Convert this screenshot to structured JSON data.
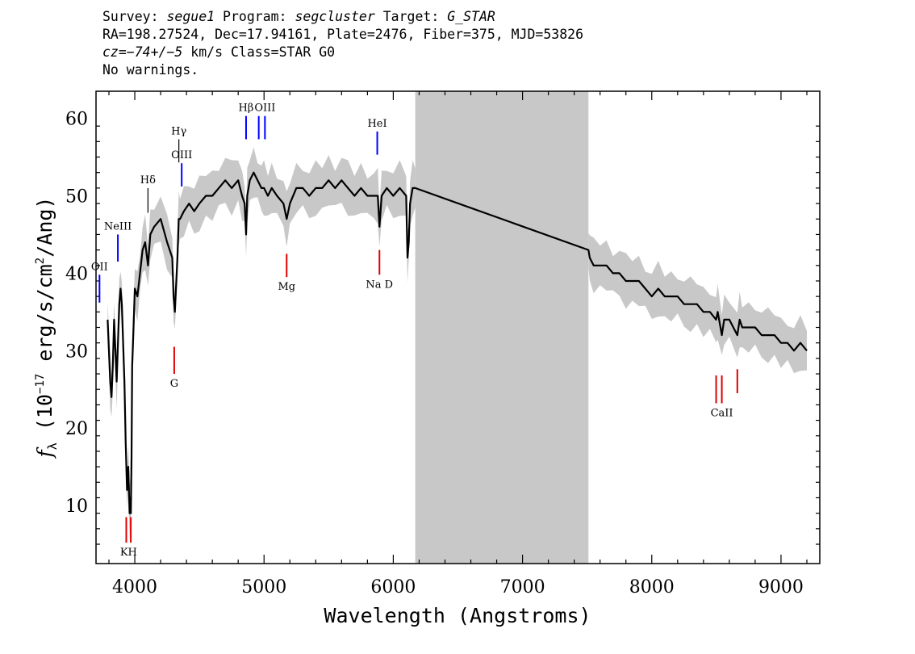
{
  "header": {
    "survey_label": "Survey:",
    "survey": "segue1",
    "program_label": "Program:",
    "program": "segcluster",
    "target_label": "Target:",
    "target": "G_STAR",
    "line2": "RA=198.27524, Dec=17.94161, Plate=2476, Fiber=375, MJD=53826",
    "cz_label": "cz",
    "cz_value": "=−74+/−5",
    "cz_rest": " km/s Class=STAR G0",
    "warnings": "No warnings."
  },
  "chart_data": {
    "type": "line",
    "xlabel": "Wavelength (Angstroms)",
    "ylabel": "f_λ (10^-17 erg/s/cm^2/Ang)",
    "ylabel_parts": {
      "f": "f",
      "sub": "λ",
      "pre": " (10",
      "exp1": "−17",
      "mid": " erg/s/cm",
      "exp2": "2",
      "post": "/Ang)"
    },
    "xlim": [
      3700,
      9300
    ],
    "ylim": [
      2.5,
      63.5
    ],
    "x_ticks": [
      4000,
      5000,
      6000,
      7000,
      8000,
      9000
    ],
    "y_ticks": [
      10,
      20,
      30,
      40,
      50,
      60
    ],
    "masked_region": [
      6170,
      7510
    ],
    "series": [
      {
        "color": "#000000",
        "x": [
          3790,
          3800,
          3810,
          3820,
          3830,
          3840,
          3850,
          3860,
          3870,
          3880,
          3890,
          3900,
          3910,
          3920,
          3930,
          3940,
          3950,
          3960,
          3965,
          3970,
          3975,
          3980,
          3990,
          4000,
          4020,
          4040,
          4060,
          4080,
          4102,
          4120,
          4150,
          4200,
          4250,
          4290,
          4300,
          4310,
          4330,
          4340,
          4350,
          4380,
          4420,
          4460,
          4500,
          4550,
          4600,
          4650,
          4700,
          4750,
          4800,
          4830,
          4850,
          4861,
          4870,
          4890,
          4920,
          4950,
          4980,
          5000,
          5030,
          5060,
          5100,
          5150,
          5175,
          5200,
          5250,
          5300,
          5350,
          5400,
          5450,
          5500,
          5550,
          5600,
          5650,
          5700,
          5750,
          5800,
          5850,
          5880,
          5893,
          5910,
          5950,
          6000,
          6050,
          6100,
          6110,
          6120,
          6130,
          6150,
          6170,
          7510,
          7520,
          7550,
          7600,
          7650,
          7700,
          7750,
          7800,
          7850,
          7900,
          7950,
          8000,
          8050,
          8100,
          8150,
          8200,
          8250,
          8300,
          8350,
          8400,
          8450,
          8498,
          8510,
          8542,
          8560,
          8600,
          8662,
          8680,
          8700,
          8750,
          8800,
          8850,
          8900,
          8950,
          9000,
          9050,
          9100,
          9150,
          9200
        ],
        "y": [
          34,
          30,
          26,
          24,
          28,
          34,
          30,
          26,
          31,
          36,
          38,
          36,
          31,
          26,
          18,
          12,
          15,
          9,
          11,
          9,
          16,
          28,
          33,
          38,
          37,
          40,
          43,
          44,
          41,
          45,
          46,
          47,
          44,
          42,
          37,
          35,
          42,
          47,
          47,
          48,
          49,
          48,
          49,
          50,
          50,
          51,
          52,
          51,
          52,
          50,
          49,
          45,
          50,
          52,
          53,
          52,
          51,
          51,
          50,
          51,
          50,
          49,
          47,
          49,
          51,
          51,
          50,
          51,
          51,
          52,
          51,
          52,
          51,
          50,
          51,
          50,
          50,
          50,
          46,
          50,
          51,
          50,
          51,
          50,
          42,
          44,
          49,
          51,
          51,
          43,
          42,
          41,
          41,
          41,
          40,
          40,
          39,
          39,
          39,
          38,
          37,
          38,
          37,
          37,
          37,
          36,
          36,
          36,
          35,
          35,
          34,
          35,
          32,
          34,
          34,
          32,
          34,
          33,
          33,
          33,
          32,
          32,
          32,
          31,
          31,
          30,
          31,
          30
        ]
      }
    ],
    "lines": [
      {
        "label": "NeIII",
        "wavelength": 3869,
        "color": "#0000ff",
        "y_low": 41.5,
        "y_high": 45.0,
        "label_pos": "above"
      },
      {
        "label": "OII",
        "wavelength": 3727,
        "color": "#0000ff",
        "y_low": 36.2,
        "y_high": 39.8,
        "label_pos": "above"
      },
      {
        "label": "Hδ",
        "wavelength": 4102,
        "color": "#000000",
        "y_low": 47.8,
        "y_high": 51.0,
        "label_pos": "above"
      },
      {
        "label": "Hγ",
        "wavelength": 4341,
        "color": "#000000",
        "y_low": 54.3,
        "y_high": 57.3,
        "label_pos": "above"
      },
      {
        "label": "OIII",
        "wavelength": 4363,
        "color": "#0000ff",
        "y_low": 51.2,
        "y_high": 54.2,
        "label_pos": "above"
      },
      {
        "label": "Hβ",
        "wavelength": 4861,
        "color": "#0000ff",
        "y_low": 57.3,
        "y_high": 60.3,
        "label_pos": "above"
      },
      {
        "label": "",
        "wavelength": 4959,
        "color": "#0000ff",
        "y_low": 57.3,
        "y_high": 60.3,
        "label_pos": "none"
      },
      {
        "label": "OIII",
        "wavelength": 5007,
        "color": "#0000ff",
        "y_low": 57.3,
        "y_high": 60.3,
        "label_pos": "above"
      },
      {
        "label": "HeI",
        "wavelength": 5876,
        "color": "#0000ff",
        "y_low": 55.3,
        "y_high": 58.3,
        "label_pos": "above"
      },
      {
        "label": "KH",
        "wavelength": 3952,
        "color": "#e00000",
        "y_low": 5.2,
        "y_high": 8.5,
        "label_pos": "below",
        "pair": [
          3934,
          3969
        ]
      },
      {
        "label": "G",
        "wavelength": 4305,
        "color": "#e00000",
        "y_low": 27.0,
        "y_high": 30.5,
        "label_pos": "below"
      },
      {
        "label": "Mg",
        "wavelength": 5175,
        "color": "#e00000",
        "y_low": 39.5,
        "y_high": 42.5,
        "label_pos": "below"
      },
      {
        "label": "Na D",
        "wavelength": 5893,
        "color": "#e00000",
        "y_low": 39.8,
        "y_high": 43.0,
        "label_pos": "below"
      },
      {
        "label": "CaII",
        "wavelength": 8542,
        "color": "#e00000",
        "y_low": 23.2,
        "y_high": 26.8,
        "label_pos": "below",
        "pair": [
          8498,
          8542
        ]
      },
      {
        "label": "",
        "wavelength": 8662,
        "color": "#e00000",
        "y_low": 24.5,
        "y_high": 27.6,
        "label_pos": "none"
      }
    ],
    "colors": {
      "error_band": "#c8c8c8",
      "mask": "#c8c8c8",
      "flux": "#000000",
      "emission": "#0000ff",
      "absorption": "#e00000"
    },
    "grid": false,
    "legend": "none"
  }
}
